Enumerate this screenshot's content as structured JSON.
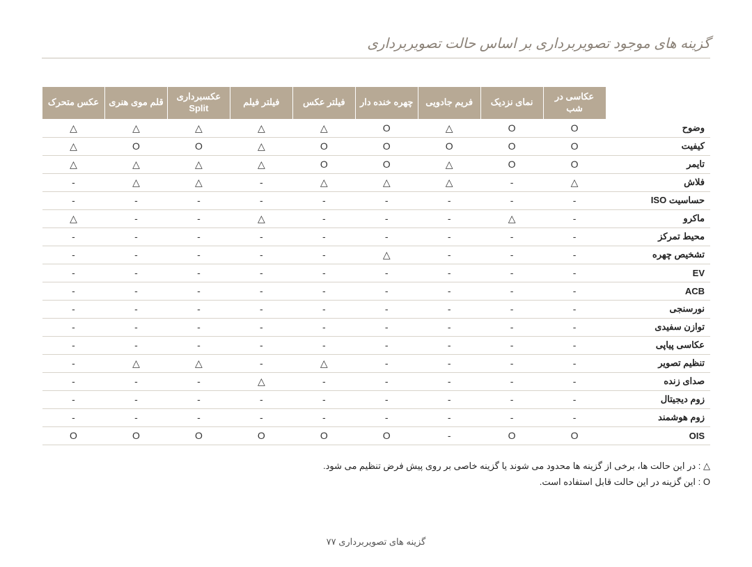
{
  "title": "گزینه های موجود تصویربرداری بر اساس حالت تصویربرداری",
  "columns": [
    "عکاسی در شب",
    "نمای نزدیک",
    "فریم جادویی",
    "چهره خنده دار",
    "فیلتر عکس",
    "فیلتر فیلم",
    "عکسبرداری Split",
    "قلم موی هنری",
    "عکس متحرک"
  ],
  "symbols": {
    "O": "O",
    "T": "△",
    "-": "-"
  },
  "rows": [
    {
      "label": "وضوح",
      "cells": [
        "O",
        "O",
        "T",
        "O",
        "T",
        "T",
        "T",
        "T",
        "T"
      ]
    },
    {
      "label": "کیفیت",
      "cells": [
        "O",
        "O",
        "O",
        "O",
        "O",
        "T",
        "O",
        "O",
        "T"
      ]
    },
    {
      "label": "تایمر",
      "cells": [
        "O",
        "O",
        "T",
        "O",
        "O",
        "T",
        "T",
        "T",
        "T"
      ]
    },
    {
      "label": "فلاش",
      "cells": [
        "T",
        "-",
        "T",
        "T",
        "T",
        "-",
        "T",
        "T",
        "-"
      ]
    },
    {
      "label": "حساسیت ISO",
      "cells": [
        "-",
        "-",
        "-",
        "-",
        "-",
        "-",
        "-",
        "-",
        "-"
      ]
    },
    {
      "label": "ماکرو",
      "cells": [
        "-",
        "T",
        "-",
        "-",
        "-",
        "T",
        "-",
        "-",
        "T"
      ]
    },
    {
      "label": "محیط تمرکز",
      "cells": [
        "-",
        "-",
        "-",
        "-",
        "-",
        "-",
        "-",
        "-",
        "-"
      ]
    },
    {
      "label": "تشخیص چهره",
      "cells": [
        "-",
        "-",
        "-",
        "T",
        "-",
        "-",
        "-",
        "-",
        "-"
      ]
    },
    {
      "label": "EV",
      "cells": [
        "-",
        "-",
        "-",
        "-",
        "-",
        "-",
        "-",
        "-",
        "-"
      ]
    },
    {
      "label": "ACB",
      "cells": [
        "-",
        "-",
        "-",
        "-",
        "-",
        "-",
        "-",
        "-",
        "-"
      ]
    },
    {
      "label": "نورسنجی",
      "cells": [
        "-",
        "-",
        "-",
        "-",
        "-",
        "-",
        "-",
        "-",
        "-"
      ]
    },
    {
      "label": "توازن سفیدی",
      "cells": [
        "-",
        "-",
        "-",
        "-",
        "-",
        "-",
        "-",
        "-",
        "-"
      ]
    },
    {
      "label": "عکاسی پیاپی",
      "cells": [
        "-",
        "-",
        "-",
        "-",
        "-",
        "-",
        "-",
        "-",
        "-"
      ]
    },
    {
      "label": "تنظیم تصویر",
      "cells": [
        "-",
        "-",
        "-",
        "-",
        "T",
        "-",
        "T",
        "T",
        "-"
      ]
    },
    {
      "label": "صدای زنده",
      "cells": [
        "-",
        "-",
        "-",
        "-",
        "-",
        "T",
        "-",
        "-",
        "-"
      ]
    },
    {
      "label": "زوم دیجیتال",
      "cells": [
        "-",
        "-",
        "-",
        "-",
        "-",
        "-",
        "-",
        "-",
        "-"
      ]
    },
    {
      "label": "زوم هوشمند",
      "cells": [
        "-",
        "-",
        "-",
        "-",
        "-",
        "-",
        "-",
        "-",
        "-"
      ]
    },
    {
      "label": "OIS",
      "cells": [
        "O",
        "O",
        "-",
        "O",
        "O",
        "O",
        "O",
        "O",
        "O"
      ]
    }
  ],
  "legend": {
    "line1": "△ : در این حالت ها، برخی از گزینه ها محدود می شوند یا گزینه خاصی بر روی پیش فرض تنظیم می شود.",
    "line2": "O : این گزینه در این حالت قابل استفاده است."
  },
  "footer": "گزینه های تصویربرداری  ۷۷"
}
